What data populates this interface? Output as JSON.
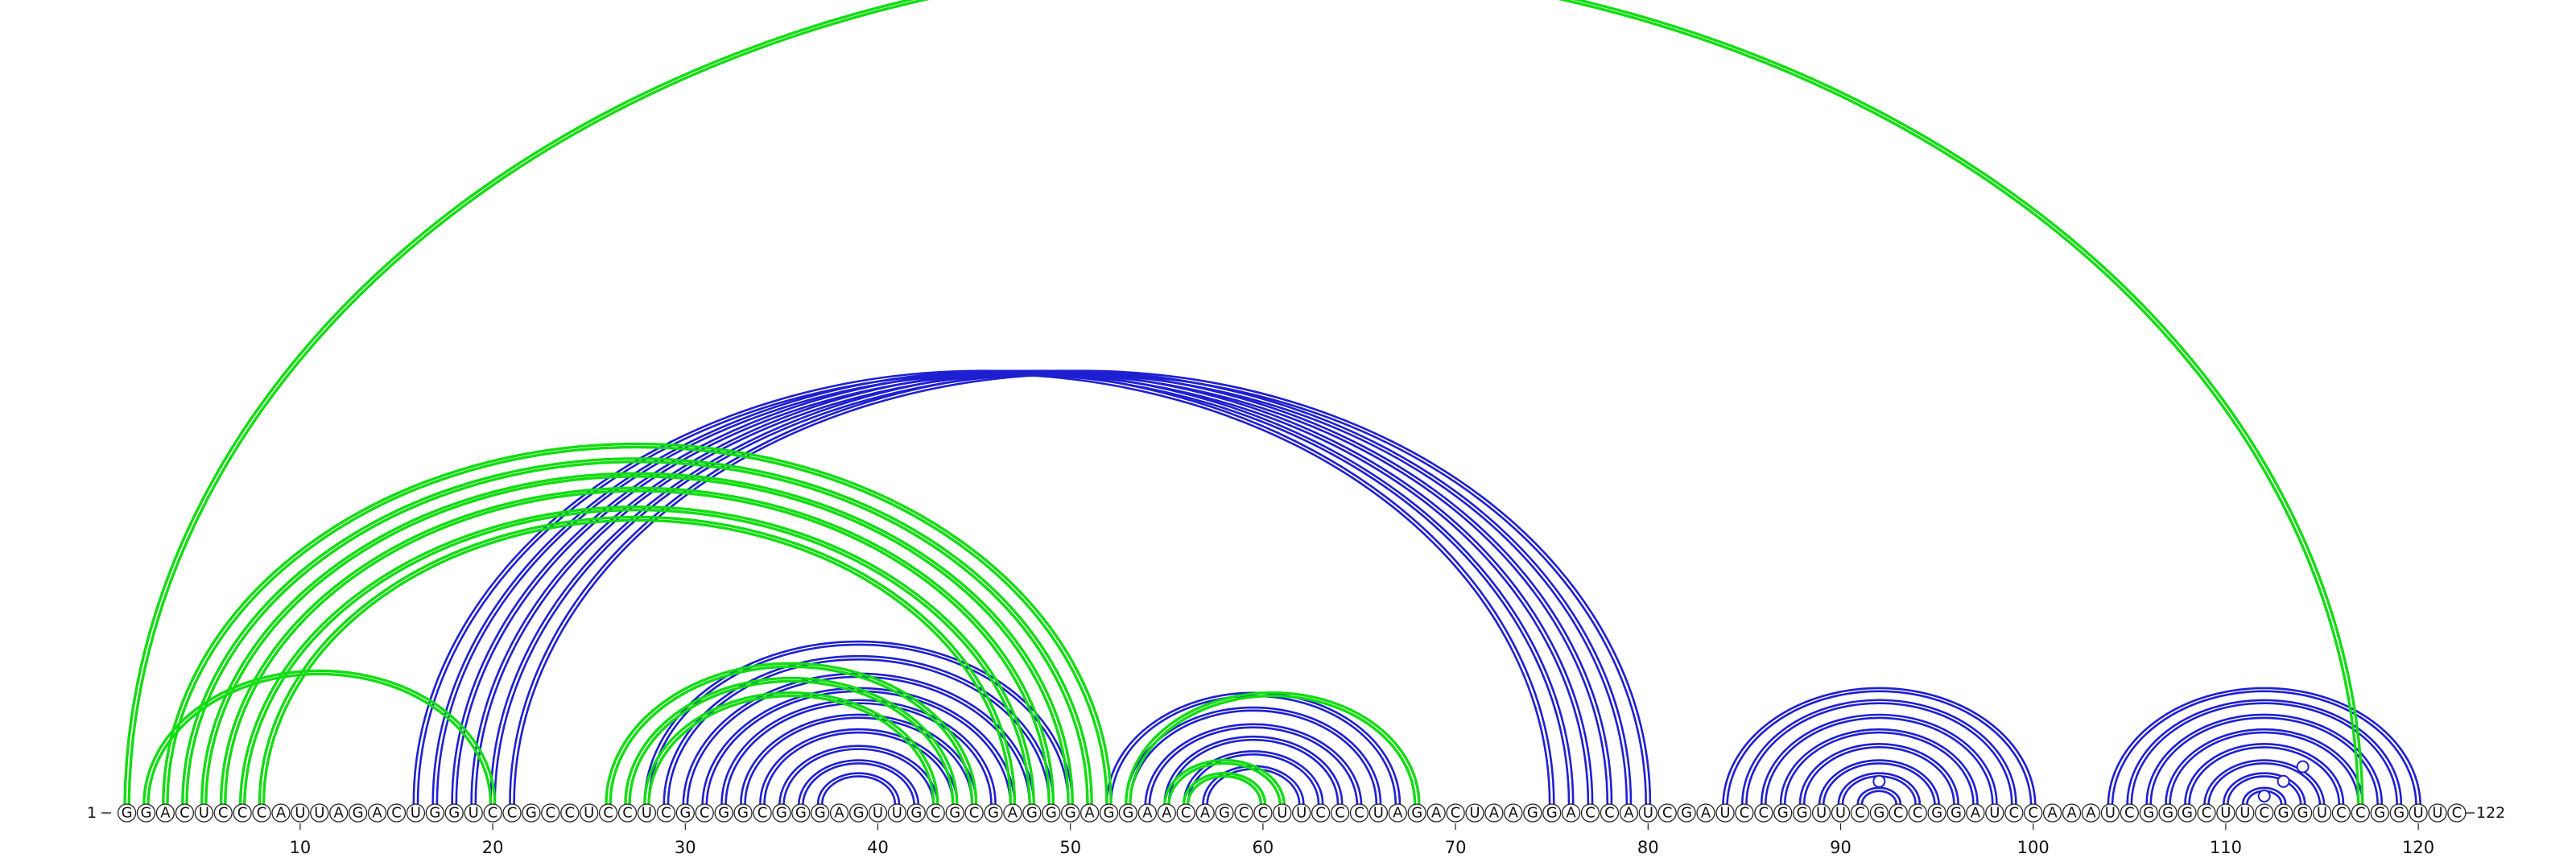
{
  "sequence": "GGACUCCCAUUAGACUGGUCCGCCUCCUCGCGGCGGGAGUUGCGCGAGGGAGGAACAGCCUUCCCUAGACUAAGGACCAUCGAUCCGGUUCGCCGGAUCCAAAUCGGGCUUCGGUCCGGUUC",
  "start_label": "1",
  "end_label": "122",
  "tick_labels": [
    "10",
    "20",
    "30",
    "40",
    "50",
    "60",
    "70",
    "80",
    "90",
    "100",
    "110",
    "120"
  ],
  "colors": {
    "blue": "#1f1fd2",
    "green": "#11dd11",
    "background": "#ffffff"
  },
  "chart_data": {
    "type": "arc-diagram",
    "length": 122,
    "tick_interval": 10,
    "structure_blue_pairs": [
      [
        16,
        75
      ],
      [
        17,
        76
      ],
      [
        18,
        77
      ],
      [
        19,
        78
      ],
      [
        20,
        79
      ],
      [
        21,
        80
      ],
      [
        28,
        50
      ],
      [
        29,
        49
      ],
      [
        30,
        48
      ],
      [
        31,
        47
      ],
      [
        32,
        46
      ],
      [
        33,
        45
      ],
      [
        34,
        44
      ],
      [
        35,
        43
      ],
      [
        36,
        42
      ],
      [
        37,
        41
      ],
      [
        52,
        67
      ],
      [
        53,
        66
      ],
      [
        54,
        65
      ],
      [
        55,
        64
      ],
      [
        56,
        63
      ],
      [
        57,
        62
      ],
      [
        84,
        100
      ],
      [
        85,
        99
      ],
      [
        86,
        98
      ],
      [
        87,
        97
      ],
      [
        88,
        96
      ],
      [
        89,
        95
      ],
      [
        90,
        94
      ],
      [
        91,
        93
      ],
      [
        92,
        92
      ],
      [
        104,
        120
      ],
      [
        105,
        119
      ],
      [
        106,
        118
      ],
      [
        107,
        117
      ],
      [
        108,
        116
      ],
      [
        109,
        115
      ],
      [
        110,
        114
      ],
      [
        111,
        113
      ]
    ],
    "structure_green_pairs": [
      [
        1,
        117
      ],
      [
        2,
        20
      ],
      [
        3,
        52
      ],
      [
        4,
        51
      ],
      [
        5,
        50
      ],
      [
        6,
        49
      ],
      [
        7,
        48
      ],
      [
        8,
        47
      ],
      [
        26,
        45
      ],
      [
        27,
        44
      ],
      [
        28,
        43
      ],
      [
        53,
        68
      ],
      [
        55,
        61
      ],
      [
        56,
        60
      ]
    ],
    "gu_marker_positions": [
      [
        91,
        93
      ],
      [
        112,
        112
      ],
      [
        112,
        114
      ],
      [
        112,
        116
      ]
    ]
  }
}
